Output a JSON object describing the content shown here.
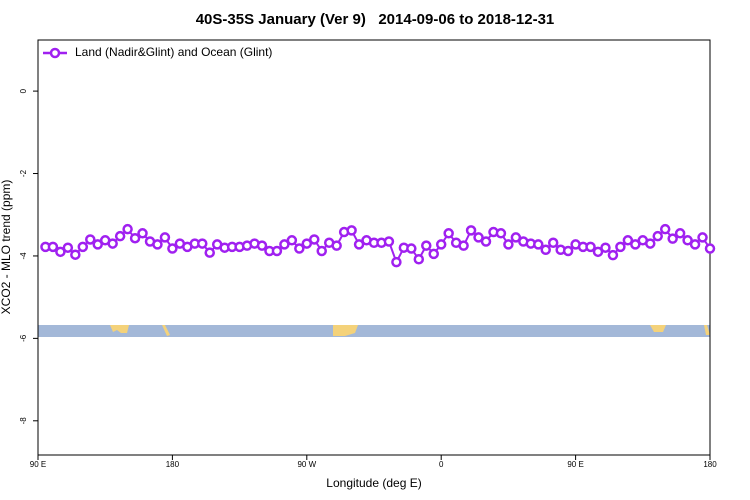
{
  "chart_data": {
    "type": "line",
    "title": "40S-35S January (Ver 9)   2014-09-06 to 2018-12-31",
    "xlabel": "Longitude (deg E)",
    "ylabel": "XCO2 - MLO trend (ppm)",
    "x": [
      95,
      100,
      105,
      110,
      115,
      120,
      125,
      130,
      135,
      140,
      145,
      150,
      155,
      160,
      165,
      170,
      175,
      180,
      185,
      190,
      195,
      200,
      205,
      210,
      215,
      220,
      225,
      230,
      235,
      240,
      245,
      250,
      255,
      260,
      265,
      270,
      275,
      280,
      285,
      290,
      295,
      300,
      305,
      310,
      315,
      320,
      325,
      330,
      335,
      340,
      345,
      350,
      355,
      360,
      365,
      370,
      375,
      380,
      385,
      390,
      395,
      400,
      405,
      410,
      415,
      420,
      425,
      430,
      435,
      440,
      445,
      450,
      455,
      460,
      465,
      470,
      475,
      480,
      485,
      490,
      495,
      500,
      505,
      510,
      515,
      520,
      525,
      530,
      535,
      540
    ],
    "series": [
      {
        "name": "Land (Nadir&Glint) and Ocean (Glint)",
        "color": "#a020f0",
        "values": [
          -3.78,
          -3.78,
          -3.9,
          -3.8,
          -3.97,
          -3.78,
          -3.6,
          -3.72,
          -3.62,
          -3.7,
          -3.52,
          -3.35,
          -3.57,
          -3.45,
          -3.65,
          -3.72,
          -3.55,
          -3.82,
          -3.7,
          -3.78,
          -3.7,
          -3.7,
          -3.92,
          -3.72,
          -3.8,
          -3.78,
          -3.78,
          -3.75,
          -3.7,
          -3.75,
          -3.88,
          -3.88,
          -3.72,
          -3.62,
          -3.82,
          -3.7,
          -3.6,
          -3.88,
          -3.68,
          -3.75,
          -3.42,
          -3.38,
          -3.72,
          -3.62,
          -3.68,
          -3.68,
          -3.65,
          -4.15,
          -3.8,
          -3.82,
          -4.08,
          -3.75,
          -3.95,
          -3.72,
          -3.45,
          -3.68,
          -3.75,
          -3.38,
          -3.55,
          -3.65,
          -3.42,
          -3.45,
          -3.72,
          -3.55,
          -3.65,
          -3.7,
          -3.72,
          -3.85,
          -3.68,
          -3.85,
          -3.88,
          -3.72,
          -3.78,
          -3.78,
          -3.9,
          -3.8,
          -3.98,
          -3.78,
          -3.62,
          -3.72,
          -3.62,
          -3.7,
          -3.52,
          -3.35,
          -3.58,
          -3.45,
          -3.62,
          -3.72,
          -3.55,
          -3.82
        ]
      }
    ],
    "xlim": [
      90,
      540
    ],
    "xticks": [
      {
        "value": 90,
        "label": "90 E"
      },
      {
        "value": 180,
        "label": "180"
      },
      {
        "value": 270,
        "label": "90 W"
      },
      {
        "value": 360,
        "label": "0"
      },
      {
        "value": 450,
        "label": "90 E"
      },
      {
        "value": 540,
        "label": "180"
      }
    ],
    "ylim": [
      -8.83,
      1.24
    ],
    "yticks": [
      0,
      -2,
      -4,
      -6,
      -8
    ],
    "legend": "top-left"
  }
}
